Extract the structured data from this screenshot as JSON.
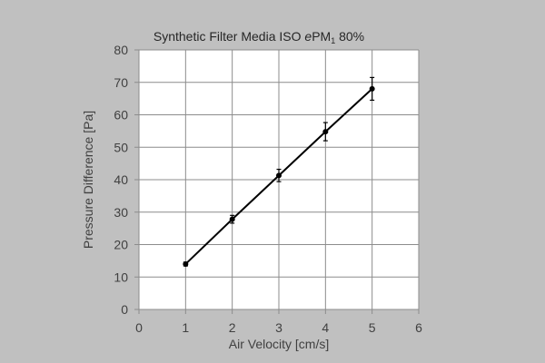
{
  "chart_data": {
    "type": "line",
    "title": {
      "prefix": "Synthetic Filter Media ISO ",
      "italic": "e",
      "mid": "PM",
      "subscript": "1",
      "suffix": " 80%"
    },
    "xlabel": "Air Velocity [cm/s]",
    "ylabel": "Pressure Difference [Pa]",
    "xlim": [
      0,
      6
    ],
    "ylim": [
      0,
      80
    ],
    "xticks": [
      0,
      1,
      2,
      3,
      4,
      5,
      6
    ],
    "yticks": [
      0,
      10,
      20,
      30,
      40,
      50,
      60,
      70,
      80
    ],
    "grid": true,
    "series": [
      {
        "x": [
          1,
          2,
          3,
          4,
          5
        ],
        "y": [
          14.0,
          27.8,
          41.3,
          54.8,
          68.0
        ],
        "error": [
          0.6,
          1.2,
          1.9,
          2.8,
          3.5
        ]
      }
    ],
    "colors": {
      "line": "#000000",
      "grid": "#8c8c8c",
      "background": "#c0c0c0",
      "plot_area": "#ffffff"
    }
  }
}
